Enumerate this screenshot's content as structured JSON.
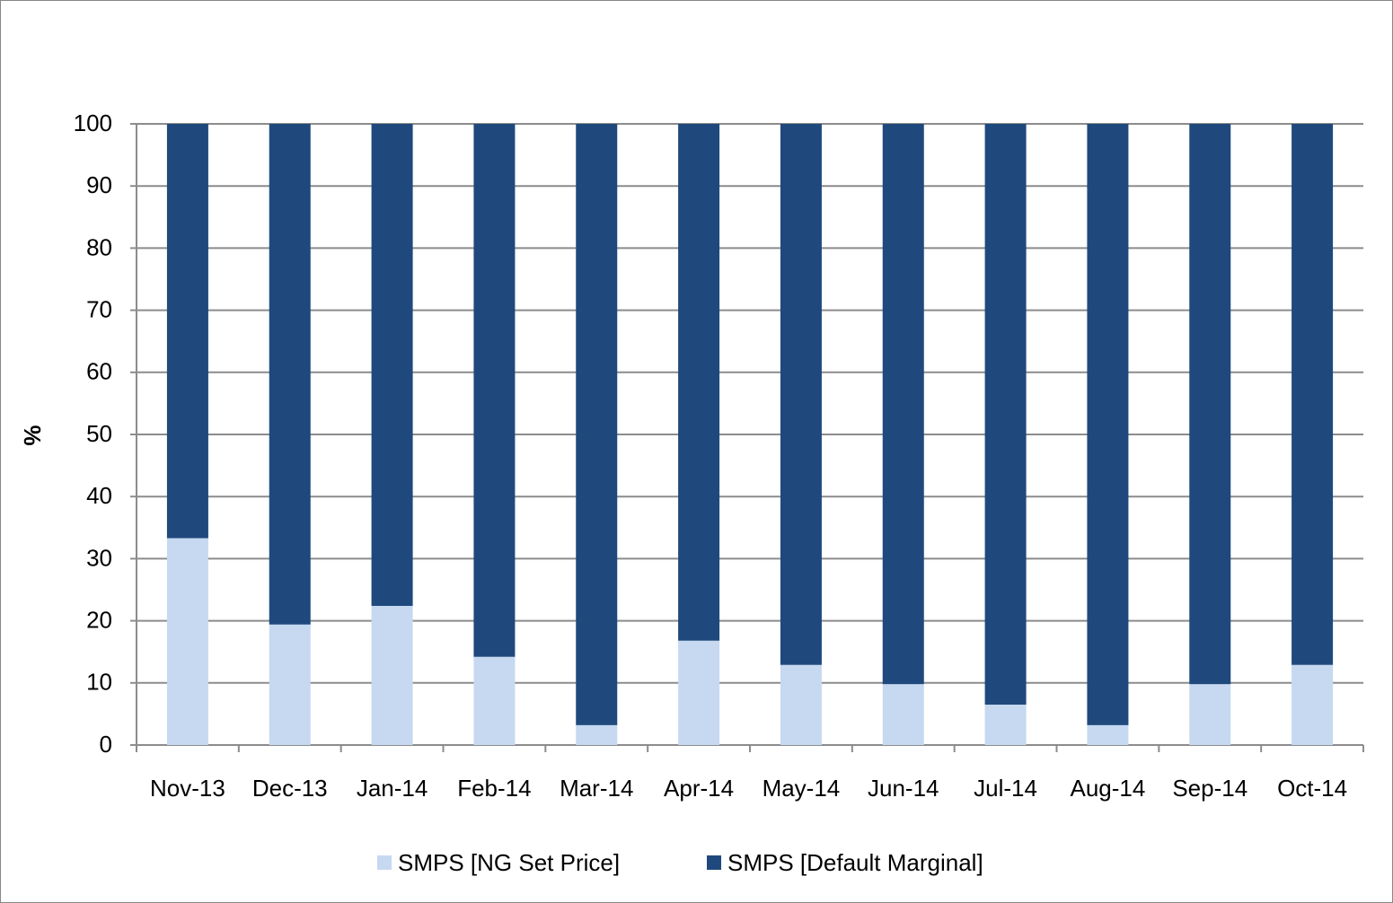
{
  "chart_data": {
    "type": "stacked_bar",
    "y_label": "%",
    "categories": [
      "Nov-13",
      "Dec-13",
      "Jan-14",
      "Feb-14",
      "Mar-14",
      "Apr-14",
      "May-14",
      "Jun-14",
      "Jul-14",
      "Aug-14",
      "Sep-14",
      "Oct-14"
    ],
    "series": [
      {
        "name": "SMPS [NG Set Price]",
        "color": "#c6d9f1",
        "values": [
          33.3,
          19.4,
          22.4,
          14.2,
          3.2,
          16.8,
          12.9,
          9.8,
          6.5,
          3.2,
          9.8,
          12.9
        ]
      },
      {
        "name": "SMPS [Default Marginal]",
        "color": "#1f497d",
        "values": [
          66.7,
          80.6,
          77.6,
          85.8,
          96.8,
          83.2,
          87.1,
          90.2,
          93.5,
          96.8,
          90.2,
          87.1
        ]
      }
    ],
    "ylim": [
      0,
      100
    ],
    "yticks": [
      0,
      10,
      20,
      30,
      40,
      50,
      60,
      70,
      80,
      90,
      100
    ],
    "grid": true,
    "legend": "bottom"
  }
}
